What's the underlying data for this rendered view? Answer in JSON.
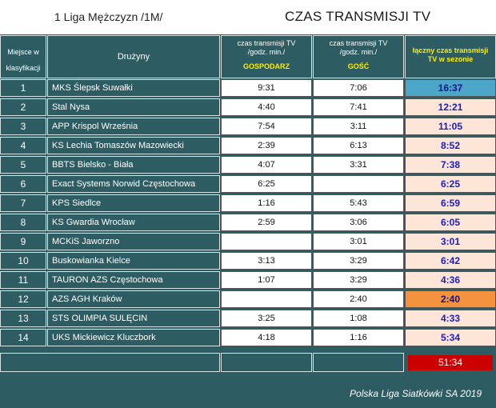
{
  "header": {
    "league": "1 Liga Mężczyzn /1M/",
    "title": "CZAS TRANSMISJI TV"
  },
  "columns": {
    "place_line1": "Miejsce w",
    "place_line2": "klasyfikacji",
    "team": "Drużyny",
    "host_line1": "czas transmisji TV",
    "host_line2": "/godz. min./",
    "host_label": "GOSPODARZ",
    "guest_line1": "czas transmisji TV",
    "guest_line2": "/godz. min./",
    "guest_label": "GOŚĆ",
    "total_line1": "łączny czas transmisji",
    "total_line2": "TV w sezonie"
  },
  "rows": [
    {
      "rank": "1",
      "team": "MKS Ślepsk Suwałki",
      "host": "9:31",
      "guest": "7:06",
      "total": "16:37"
    },
    {
      "rank": "2",
      "team": "Stal Nysa",
      "host": "4:40",
      "guest": "7:41",
      "total": "12:21"
    },
    {
      "rank": "3",
      "team": "APP Krispol Września",
      "host": "7:54",
      "guest": "3:11",
      "total": "11:05"
    },
    {
      "rank": "4",
      "team": "KS Lechia Tomaszów Mazowiecki",
      "host": "2:39",
      "guest": "6:13",
      "total": "8:52"
    },
    {
      "rank": "5",
      "team": "BBTS Bielsko - Biała",
      "host": "4:07",
      "guest": "3:31",
      "total": "7:38"
    },
    {
      "rank": "6",
      "team": "Exact Systems Norwid Częstochowa",
      "host": "6:25",
      "guest": "",
      "total": "6:25"
    },
    {
      "rank": "7",
      "team": "KPS Siedlce",
      "host": "1:16",
      "guest": "5:43",
      "total": "6:59"
    },
    {
      "rank": "8",
      "team": "KS Gwardia Wrocław",
      "host": "2:59",
      "guest": "3:06",
      "total": "6:05"
    },
    {
      "rank": "9",
      "team": "MCKiS Jaworzno",
      "host": "",
      "guest": "3:01",
      "total": "3:01"
    },
    {
      "rank": "10",
      "team": "Buskowianka Kielce",
      "host": "3:13",
      "guest": "3:29",
      "total": "6:42"
    },
    {
      "rank": "11",
      "team": "TAURON AZS Częstochowa",
      "host": "1:07",
      "guest": "3:29",
      "total": "4:36"
    },
    {
      "rank": "12",
      "team": "AZS AGH Kraków",
      "host": "",
      "guest": "2:40",
      "total": "2:40"
    },
    {
      "rank": "13",
      "team": "STS OLIMPIA SULĘCIN",
      "host": "3:25",
      "guest": "1:08",
      "total": "4:33"
    },
    {
      "rank": "14",
      "team": "UKS Mickiewicz Kluczbork",
      "host": "4:18",
      "guest": "1:16",
      "total": "5:34"
    }
  ],
  "summary": {
    "total": "51:34"
  },
  "footer": "Polska Liga Siatkówki SA 2019",
  "colors": {
    "background": "#2d5c63",
    "highlight_top": "#4ba6c8",
    "highlight_low": "#f5923e",
    "total_fill": "#fde6d8",
    "summary_fill": "#cc0000",
    "header_accent": "#ffef00"
  }
}
